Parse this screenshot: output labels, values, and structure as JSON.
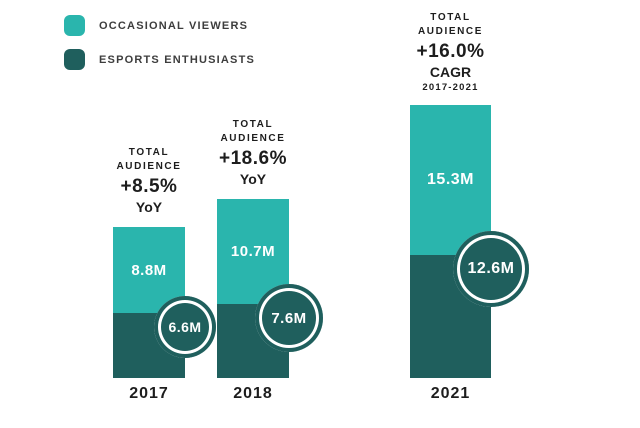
{
  "legend": {
    "items": [
      {
        "label": "OCCASIONAL VIEWERS"
      },
      {
        "label": "ESPORTS ENTHUSIASTS"
      }
    ]
  },
  "chart_data": {
    "type": "bar",
    "stacked": true,
    "categories": [
      "2017",
      "2018",
      "2021"
    ],
    "series": [
      {
        "name": "Esports Enthusiasts",
        "values": [
          6.6,
          7.6,
          12.6
        ],
        "unit": "M",
        "color": "#1f5f5d"
      },
      {
        "name": "Occasional Viewers",
        "values": [
          8.8,
          10.7,
          15.3
        ],
        "unit": "M",
        "color": "#2ab5ad"
      }
    ],
    "totals": [
      15.4,
      18.3,
      27.9
    ],
    "annotations": [
      {
        "category": "2017",
        "label": "TOTAL AUDIENCE",
        "value": "+8.5%",
        "basis": "YoY"
      },
      {
        "category": "2018",
        "label": "TOTAL AUDIENCE",
        "value": "+18.6%",
        "basis": "YoY"
      },
      {
        "category": "2021",
        "label": "TOTAL AUDIENCE",
        "value": "+16.0%",
        "basis": "CAGR",
        "period": "2017-2021"
      }
    ],
    "legend_position": "top-left",
    "axes": "none",
    "grid": false
  },
  "bars": [
    {
      "year": "2017",
      "header_line1": "TOTAL",
      "header_line2": "AUDIENCE",
      "pct": "+8.5%",
      "pct_sub": "YoY",
      "period": "",
      "viewers_label": "8.8M",
      "enthusiasts_label": "6.6M"
    },
    {
      "year": "2018",
      "header_line1": "TOTAL",
      "header_line2": "AUDIENCE",
      "pct": "+18.6%",
      "pct_sub": "YoY",
      "period": "",
      "viewers_label": "10.7M",
      "enthusiasts_label": "7.6M"
    },
    {
      "year": "2021",
      "header_line1": "TOTAL",
      "header_line2": "AUDIENCE",
      "pct": "+16.0%",
      "pct_sub": "CAGR",
      "period": "2017-2021",
      "viewers_label": "15.3M",
      "enthusiasts_label": "12.6M"
    }
  ]
}
